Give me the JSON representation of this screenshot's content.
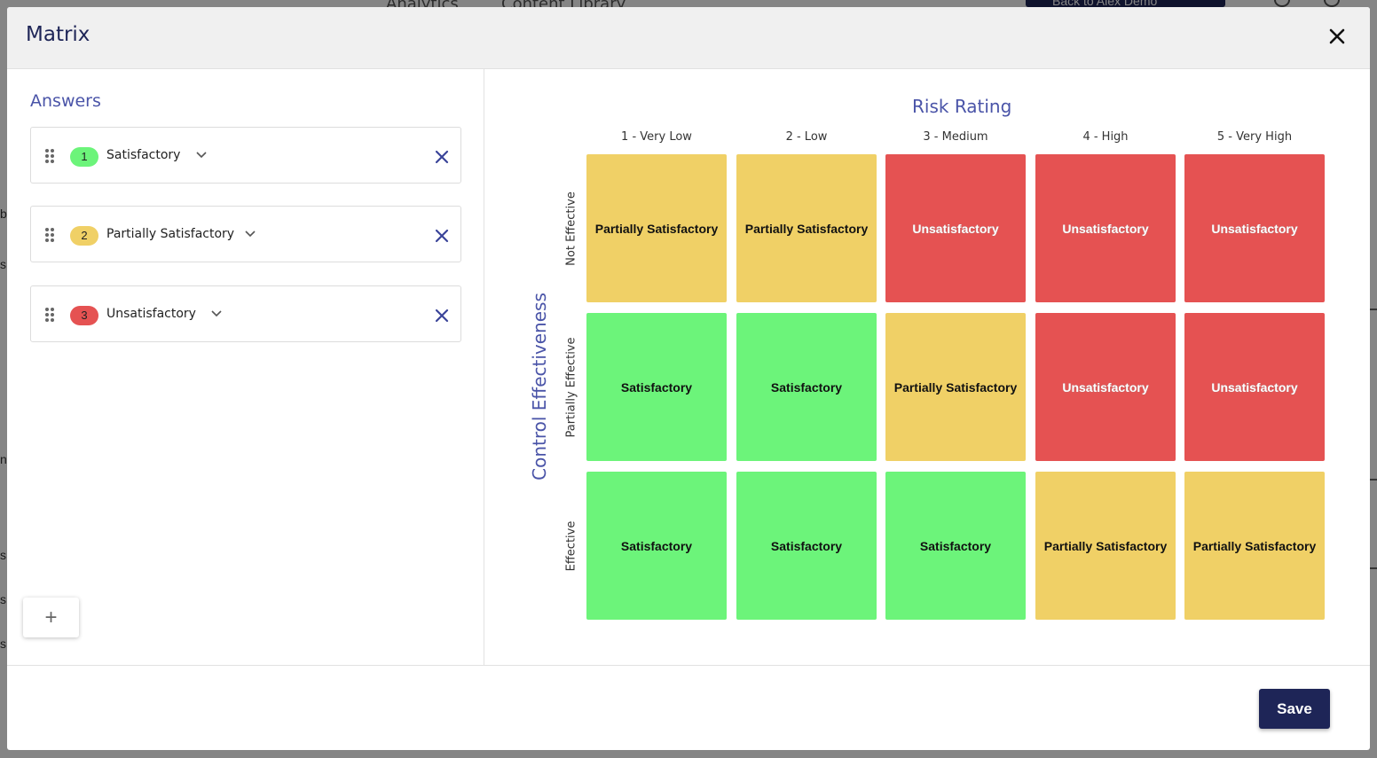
{
  "background": {
    "tabs": [
      "Analytics",
      "Content Library"
    ],
    "back_button": "Back to Alex Demo"
  },
  "modal": {
    "title": "Matrix",
    "save_label": "Save",
    "add_label": "+"
  },
  "answers": {
    "title": "Answers",
    "items": [
      {
        "number": "1",
        "label": "Satisfactory",
        "color": "#6cf47a"
      },
      {
        "number": "2",
        "label": "Partially Satisfactory",
        "color": "#f0d066"
      },
      {
        "number": "3",
        "label": "Unsatisfactory",
        "color": "#e55252"
      }
    ]
  },
  "matrix": {
    "x_title": "Risk Rating",
    "y_title": "Control Effectiveness",
    "columns": [
      "1 - Very Low",
      "2 - Low",
      "3 - Medium",
      "4 - High",
      "5 - Very High"
    ],
    "rows": [
      "Not Effective",
      "Partially Effective",
      "Effective"
    ],
    "cells": [
      [
        "Partially Satisfactory",
        "Partially Satisfactory",
        "Unsatisfactory",
        "Unsatisfactory",
        "Unsatisfactory"
      ],
      [
        "Satisfactory",
        "Satisfactory",
        "Partially Satisfactory",
        "Unsatisfactory",
        "Unsatisfactory"
      ],
      [
        "Satisfactory",
        "Satisfactory",
        "Satisfactory",
        "Partially Satisfactory",
        "Partially Satisfactory"
      ]
    ]
  }
}
